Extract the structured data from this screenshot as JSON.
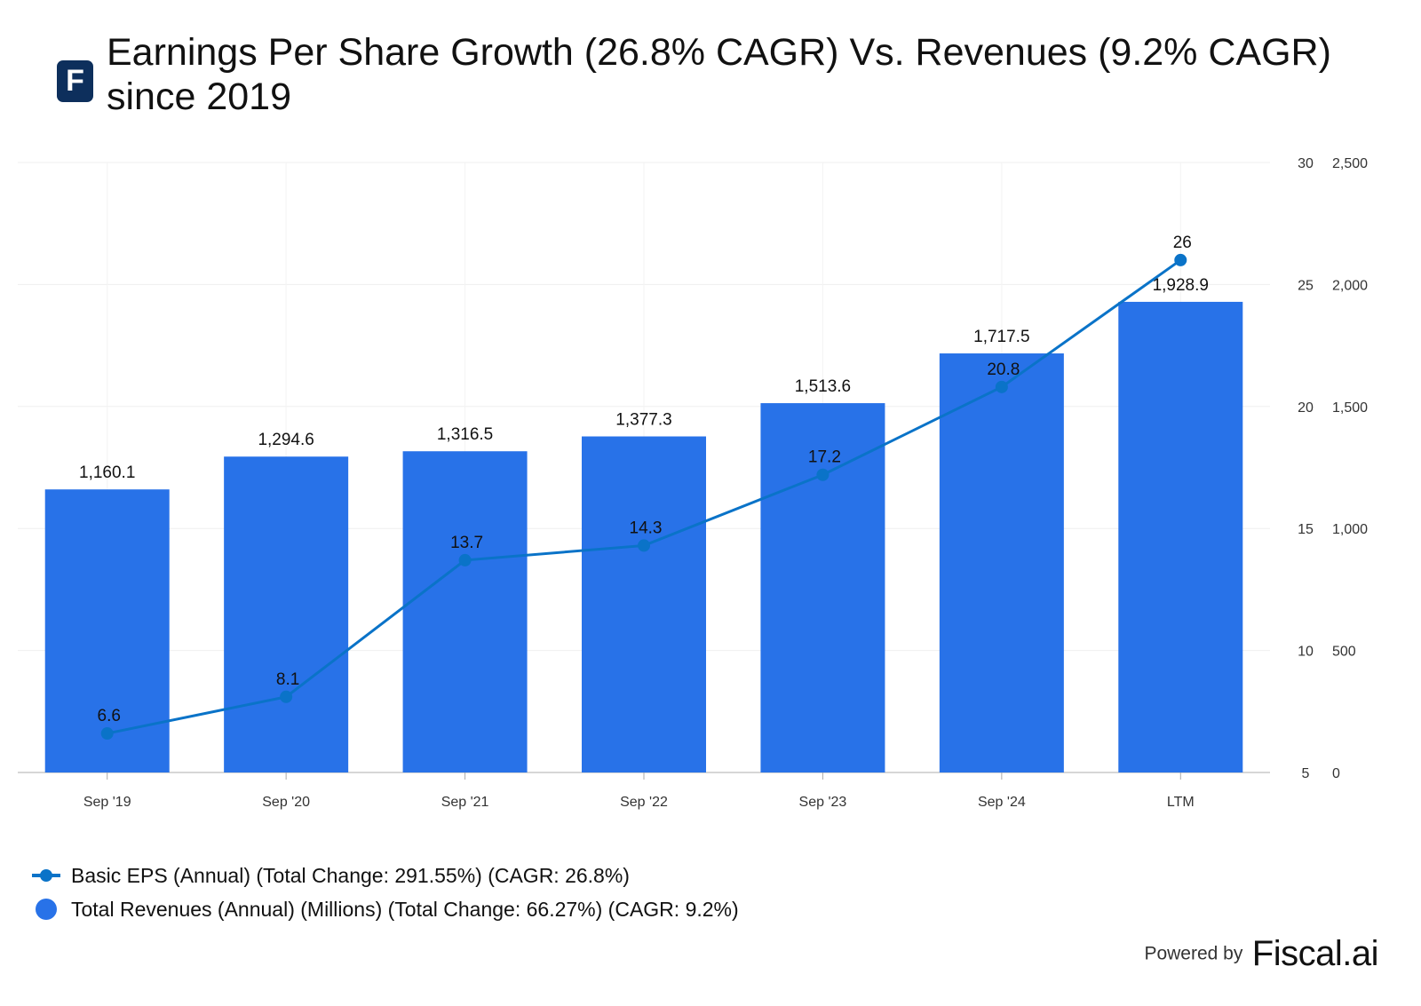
{
  "header": {
    "logo_letter": "F",
    "title": "Earnings Per Share Growth (26.8% CAGR) Vs. Revenues (9.2% CAGR) since 2019"
  },
  "chart_data": {
    "type": "bar+line",
    "title": "Earnings Per Share Growth (26.8% CAGR) Vs. Revenues (9.2% CAGR) since 2019",
    "categories": [
      "Sep '19",
      "Sep '20",
      "Sep '21",
      "Sep '22",
      "Sep '23",
      "Sep '24",
      "LTM"
    ],
    "series": [
      {
        "name": "Total Revenues (Annual) (Millions) (Total Change: 66.27%) (CAGR: 9.2%)",
        "type": "bar",
        "axis": "right-outer",
        "color": "#2872e8",
        "values": [
          1160.1,
          1294.6,
          1316.5,
          1377.3,
          1513.6,
          1717.5,
          1928.9
        ],
        "labels": [
          "1,160.1",
          "1,294.6",
          "1,316.5",
          "1,377.3",
          "1,513.6",
          "1,717.5",
          "1,928.9"
        ]
      },
      {
        "name": "Basic EPS (Annual) (Total Change: 291.55%) (CAGR: 26.8%)",
        "type": "line",
        "axis": "right-inner",
        "color": "#0a73c8",
        "values": [
          6.6,
          8.1,
          13.7,
          14.3,
          17.2,
          20.8,
          26
        ],
        "labels": [
          "6.6",
          "8.1",
          "13.7",
          "14.3",
          "17.2",
          "20.8",
          "26"
        ]
      }
    ],
    "eps_axis": {
      "min": 5,
      "max": 30,
      "ticks": [
        "5",
        "10",
        "15",
        "20",
        "25",
        "30"
      ]
    },
    "revenue_axis": {
      "min": 0,
      "max": 2500,
      "ticks": [
        "0",
        "500",
        "1,000",
        "1,500",
        "2,000",
        "2,500"
      ]
    },
    "grid": true,
    "legend_position": "bottom-left"
  },
  "legend": {
    "eps_label": "Basic EPS (Annual) (Total Change: 291.55%) (CAGR: 26.8%)",
    "revenue_label": "Total Revenues (Annual) (Millions) (Total Change: 66.27%) (CAGR: 9.2%)"
  },
  "footer": {
    "powered_by": "Powered by",
    "brand": "Fiscal.ai"
  }
}
